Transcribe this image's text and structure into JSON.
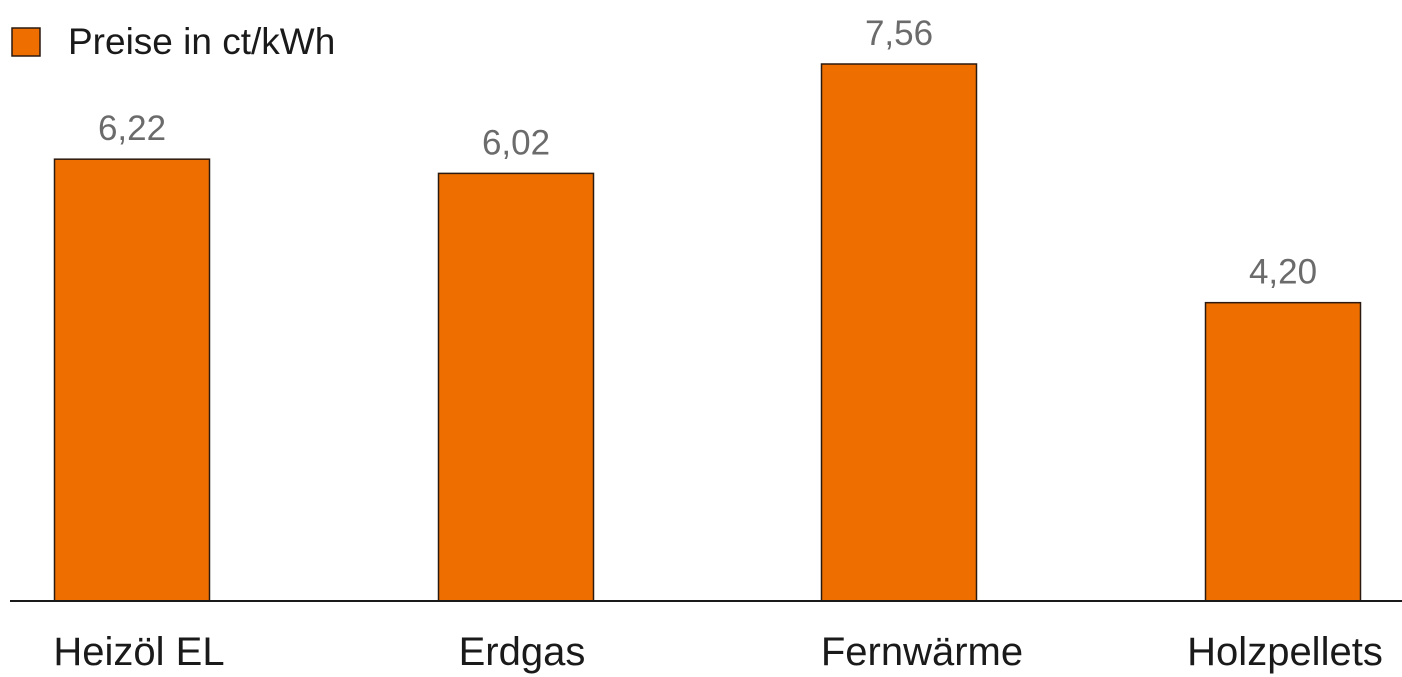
{
  "chart_data": {
    "type": "bar",
    "categories": [
      "Heizöl EL",
      "Erdgas",
      "Fernwärme",
      "Holzpellets"
    ],
    "series": [
      {
        "name": "Preise in ct/kWh",
        "values": [
          6.22,
          6.02,
          7.56,
          4.2
        ],
        "value_labels": [
          "6,22",
          "6,02",
          "7,56",
          "4,20"
        ]
      }
    ],
    "ylim": [
      0,
      7.56
    ],
    "grid": false,
    "legend_position": "top-left",
    "colors": {
      "bar": "#EE6F00",
      "bar_outline": "#2a1a10",
      "value_label": "#6b6b6b",
      "category_label": "#1a1a1a",
      "axis": "#1a1a1a"
    }
  }
}
